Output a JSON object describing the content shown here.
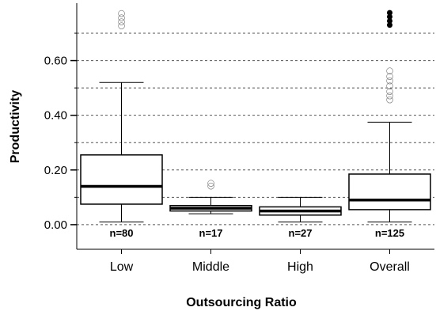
{
  "chart_data": {
    "type": "boxplot",
    "title": "",
    "xlabel": "Outsourcing Ratio",
    "ylabel": "Productivity",
    "ylim": [
      -0.09,
      0.81
    ],
    "yticks": [
      0.0,
      0.2,
      0.4,
      0.6
    ],
    "ytick_labels": [
      "0.00",
      "0.20",
      "0.40",
      "0.60"
    ],
    "gridlines": [
      0.0,
      0.1,
      0.2,
      0.3,
      0.4,
      0.5,
      0.6,
      0.7
    ],
    "grid": "dashed horizontal",
    "categories": [
      "Low",
      "Middle",
      "High",
      "Overall"
    ],
    "boxes": [
      {
        "category": "Low",
        "n_label": "n=80",
        "whisker_low": 0.01,
        "q1": 0.075,
        "median": 0.14,
        "q3": 0.255,
        "whisker_high": 0.52,
        "outliers": [
          0.73,
          0.745,
          0.76,
          0.775
        ],
        "outlier_style": "open"
      },
      {
        "category": "Middle",
        "n_label": "n=17",
        "whisker_low": 0.04,
        "q1": 0.05,
        "median": 0.06,
        "q3": 0.07,
        "whisker_high": 0.1,
        "outliers": [
          0.145,
          0.155
        ],
        "outlier_style": "open"
      },
      {
        "category": "High",
        "n_label": "n=27",
        "whisker_low": 0.01,
        "q1": 0.035,
        "median": 0.05,
        "q3": 0.065,
        "whisker_high": 0.1,
        "outliers": [],
        "outlier_style": "open"
      },
      {
        "category": "Overall",
        "n_label": "n=125",
        "whisker_low": 0.01,
        "q1": 0.055,
        "median": 0.09,
        "q3": 0.185,
        "whisker_high": 0.375,
        "outliers": [
          0.46,
          0.475,
          0.49,
          0.51,
          0.53,
          0.545,
          0.565
        ],
        "outlier_style": "open",
        "extremes": [
          0.73,
          0.745,
          0.76,
          0.775
        ],
        "extreme_style": "filled"
      }
    ]
  }
}
